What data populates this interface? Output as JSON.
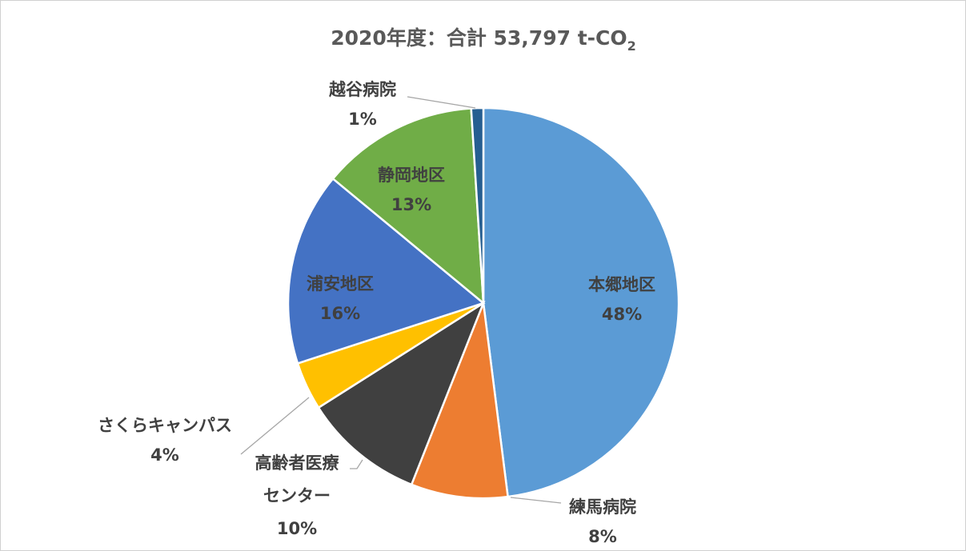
{
  "chart_data": {
    "type": "pie",
    "title": "2020年度：合計 53,797 t-CO",
    "title_subscript": "2",
    "total": "53,797 t-CO2",
    "slices": [
      {
        "name": "本郷地区",
        "label_lines": [
          "本郷地区"
        ],
        "percent_label": "48%",
        "value": 48,
        "color": "#5B9BD5"
      },
      {
        "name": "練馬病院",
        "label_lines": [
          "練馬病院"
        ],
        "percent_label": "8%",
        "value": 8,
        "color": "#ED7D31"
      },
      {
        "name": "高齢者医療センター",
        "label_lines": [
          "高齢者医療",
          "センター"
        ],
        "percent_label": "10%",
        "value": 10,
        "color": "#404040"
      },
      {
        "name": "さくらキャンパス",
        "label_lines": [
          "さくらキャンパス"
        ],
        "percent_label": "4%",
        "value": 4,
        "color": "#FFC000"
      },
      {
        "name": "浦安地区",
        "label_lines": [
          "浦安地区"
        ],
        "percent_label": "16%",
        "value": 16,
        "color": "#4472C4"
      },
      {
        "name": "静岡地区",
        "label_lines": [
          "静岡地区"
        ],
        "percent_label": "13%",
        "value": 13,
        "color": "#70AD47"
      },
      {
        "name": "越谷病院",
        "label_lines": [
          "越谷病院"
        ],
        "percent_label": "1%",
        "value": 1,
        "color": "#255E91"
      }
    ],
    "legend": "none"
  }
}
